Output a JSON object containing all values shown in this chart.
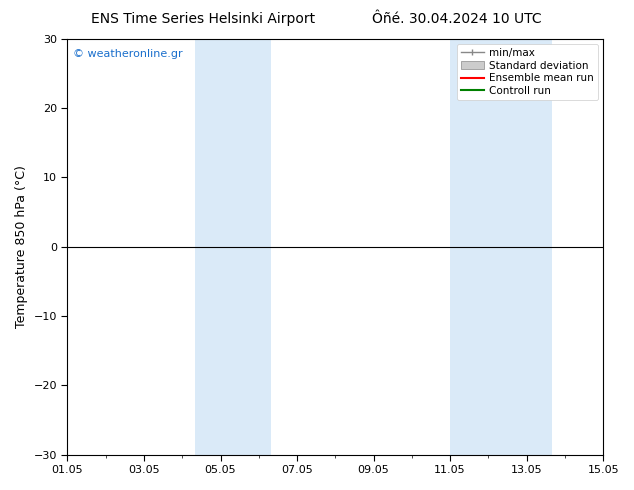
{
  "title_left": "ENS Time Series Helsinki Airport",
  "title_right": "Ôñé. 30.04.2024 10 UTC",
  "ylabel": "Temperature 850 hPa (°C)",
  "watermark": "© weatheronline.gr",
  "ylim": [
    -30,
    30
  ],
  "yticks": [
    -30,
    -20,
    -10,
    0,
    10,
    20,
    30
  ],
  "xlim": [
    0,
    14
  ],
  "xtick_labels": [
    "01.05",
    "03.05",
    "05.05",
    "07.05",
    "09.05",
    "11.05",
    "13.05",
    "15.05"
  ],
  "xtick_positions": [
    0,
    2,
    4,
    6,
    8,
    10,
    12,
    14
  ],
  "shaded_bands": [
    {
      "x_start": 3.33,
      "x_end": 4.0,
      "color": "#daeaf8"
    },
    {
      "x_start": 4.0,
      "x_end": 5.33,
      "color": "#daeaf8"
    },
    {
      "x_start": 10.0,
      "x_end": 11.0,
      "color": "#daeaf8"
    },
    {
      "x_start": 11.0,
      "x_end": 12.67,
      "color": "#daeaf8"
    }
  ],
  "hline_y": 0,
  "hline_color": "#000000",
  "background_color": "#ffffff",
  "plot_bg_color": "#ffffff",
  "legend_labels": [
    "min/max",
    "Standard deviation",
    "Ensemble mean run",
    "Controll run"
  ],
  "min_max_color": "#888888",
  "std_dev_color": "#cccccc",
  "ensemble_color": "#ff0000",
  "control_color": "#008000",
  "title_fontsize": 10,
  "axis_fontsize": 9,
  "tick_fontsize": 8,
  "watermark_color": "#1a6fcc"
}
